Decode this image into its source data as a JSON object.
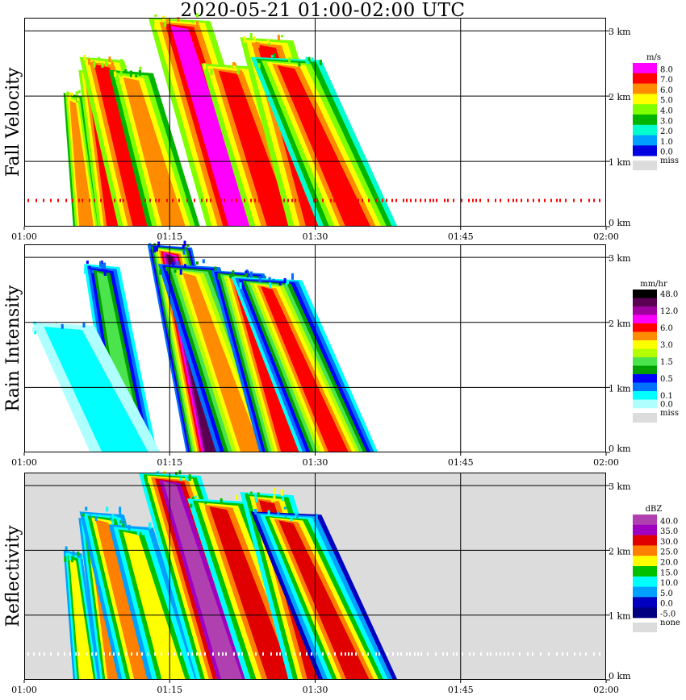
{
  "title": "2020-05-21   01:00-02:00 UTC",
  "x_ticks": [
    "01:00",
    "01:15",
    "01:30",
    "01:45",
    "02:00"
  ],
  "y_ticks": [
    "0 km",
    "1 km",
    "2 km",
    "3 km"
  ],
  "panels": [
    {
      "id": "fall-velocity",
      "ylabel": "Fall Velocity",
      "unit": "m/s",
      "legend": [
        {
          "label": "8.0",
          "color": "#ff00ff"
        },
        {
          "label": "7.0",
          "color": "#ff0000"
        },
        {
          "label": "6.0",
          "color": "#ff8c00"
        },
        {
          "label": "5.0",
          "color": "#ffff00"
        },
        {
          "label": "4.0",
          "color": "#7fff00"
        },
        {
          "label": "3.0",
          "color": "#00b400"
        },
        {
          "label": "2.0",
          "color": "#00ffcc"
        },
        {
          "label": "1.0",
          "color": "#00a0ff"
        },
        {
          "label": "0.0",
          "color": "#0000e0"
        }
      ],
      "missing_label": "miss"
    },
    {
      "id": "rain-intensity",
      "ylabel": "Rain Intensity",
      "unit": "mm/hr",
      "legend": [
        {
          "label": "48.0",
          "color": "#000000"
        },
        {
          "label": "",
          "color": "#5a0050"
        },
        {
          "label": "12.0",
          "color": "#a000a0"
        },
        {
          "label": "",
          "color": "#ff00ff"
        },
        {
          "label": "6.0",
          "color": "#ff0000"
        },
        {
          "label": "",
          "color": "#ff8c00"
        },
        {
          "label": "3.0",
          "color": "#ffff00"
        },
        {
          "label": "",
          "color": "#b4ff00"
        },
        {
          "label": "1.5",
          "color": "#4ce44c"
        },
        {
          "label": "",
          "color": "#00a000"
        },
        {
          "label": "0.5",
          "color": "#0000ff"
        },
        {
          "label": "",
          "color": "#0070ff"
        },
        {
          "label": "0.1",
          "color": "#00ffff"
        },
        {
          "label": "0.0",
          "color": "#b0ffff"
        }
      ],
      "missing_label": "miss"
    },
    {
      "id": "reflectivity",
      "ylabel": "Reflectivity",
      "unit": "dBZ",
      "legend": [
        {
          "label": "40.0",
          "color": "#b040b0"
        },
        {
          "label": "35.0",
          "color": "#a000c0"
        },
        {
          "label": "30.0",
          "color": "#e00000"
        },
        {
          "label": "25.0",
          "color": "#ff8000"
        },
        {
          "label": "20.0",
          "color": "#ffff00"
        },
        {
          "label": "15.0",
          "color": "#00c000"
        },
        {
          "label": "10.0",
          "color": "#00ffff"
        },
        {
          "label": "5.0",
          "color": "#00a0ff"
        },
        {
          "label": "0.0",
          "color": "#0000c0"
        },
        {
          "label": "-5.0",
          "color": "#000080"
        }
      ],
      "missing_label": "none"
    }
  ],
  "chart_data": {
    "type": "heatmap",
    "title": "2020-05-21   01:00-02:00 UTC",
    "x_range": [
      "01:00",
      "02:00"
    ],
    "y_range_km": [
      0,
      3.2
    ],
    "y_tick_values_km": [
      0,
      1,
      2,
      3
    ],
    "grid": true,
    "legend_placement": "right",
    "panels": [
      {
        "name": "Fall Velocity",
        "unit": "m/s",
        "missing_label": "miss",
        "scale": [
          "0.0",
          "1.0",
          "2.0",
          "3.0",
          "4.0",
          "5.0",
          "6.0",
          "7.0",
          "8.0"
        ],
        "background": "#ffffff",
        "palette": [
          "#0000e0",
          "#00a0ff",
          "#00ffcc",
          "#00b400",
          "#7fff00",
          "#ffff00",
          "#ff8c00",
          "#ff0000",
          "#ff00ff"
        ],
        "rain_bands": [
          {
            "t_top": "01:05",
            "t_bottom": "01:06",
            "top_km": 2.05,
            "peak": 6,
            "edge": 3
          },
          {
            "t_top": "01:07",
            "t_bottom": "01:09",
            "top_km": 2.4,
            "peak": 7,
            "edge": 4
          },
          {
            "t_top": "01:08",
            "t_bottom": "01:12",
            "top_km": 2.6,
            "peak": 7,
            "edge": 4
          },
          {
            "t_top": "01:11",
            "t_bottom": "01:15",
            "top_km": 2.4,
            "peak": 6,
            "edge": 3
          },
          {
            "t_top": "01:16",
            "t_bottom": "01:22",
            "top_km": 3.2,
            "peak": 8,
            "edge": 4
          },
          {
            "t_top": "01:21",
            "t_bottom": "01:26",
            "top_km": 2.5,
            "peak": 7,
            "edge": 4
          },
          {
            "t_top": "01:25",
            "t_bottom": "01:30",
            "top_km": 2.9,
            "peak": 7,
            "edge": 4
          },
          {
            "t_top": "01:27",
            "t_bottom": "01:34",
            "top_km": 2.6,
            "peak": 7,
            "edge": 2
          }
        ],
        "speckle_line_km": 0.4
      },
      {
        "name": "Rain Intensity",
        "unit": "mm/hr",
        "missing_label": "miss",
        "scale": [
          "0.0",
          "0.1",
          "0.5",
          "1.5",
          "3.0",
          "6.0",
          "12.0",
          "48.0"
        ],
        "background": "#ffffff",
        "palette": [
          "#b0ffff",
          "#00ffff",
          "#0070ff",
          "#0000ff",
          "#00a000",
          "#4ce44c",
          "#b4ff00",
          "#ffff00",
          "#ff8c00",
          "#ff0000",
          "#ff00ff",
          "#a000a0",
          "#5a0050",
          "#000000"
        ],
        "rain_bands": [
          {
            "t_top": "01:08",
            "t_bottom": "01:11",
            "top_km": 2.9,
            "peak": 5,
            "edge": 1
          },
          {
            "t_top": "01:04",
            "t_bottom": "01:10",
            "top_km": 2.0,
            "peak": 1,
            "edge": 0
          },
          {
            "t_top": "01:15",
            "t_bottom": "01:19",
            "top_km": 3.2,
            "peak": 12,
            "edge": 2
          },
          {
            "t_top": "01:17",
            "t_bottom": "01:23",
            "top_km": 2.9,
            "peak": 8,
            "edge": 2
          },
          {
            "t_top": "01:22",
            "t_bottom": "01:27",
            "top_km": 2.8,
            "peak": 9,
            "edge": 2
          },
          {
            "t_top": "01:25",
            "t_bottom": "01:32",
            "top_km": 2.7,
            "peak": 9,
            "edge": 1
          }
        ]
      },
      {
        "name": "Reflectivity",
        "unit": "dBZ",
        "missing_label": "none",
        "scale": [
          "-5.0",
          "0.0",
          "5.0",
          "10.0",
          "15.0",
          "20.0",
          "25.0",
          "30.0",
          "35.0",
          "40.0"
        ],
        "background": "#dcdcdc",
        "palette": [
          "#000080",
          "#0000c0",
          "#00a0ff",
          "#00ffff",
          "#00c000",
          "#ffff00",
          "#ff8000",
          "#e00000",
          "#a000c0",
          "#b040b0"
        ],
        "rain_bands": [
          {
            "t_top": "01:05",
            "t_bottom": "01:06",
            "top_km": 2.0,
            "peak": 5,
            "edge": 2
          },
          {
            "t_top": "01:07",
            "t_bottom": "01:09",
            "top_km": 2.5,
            "peak": 6,
            "edge": 2
          },
          {
            "t_top": "01:08",
            "t_bottom": "01:12",
            "top_km": 2.6,
            "peak": 6,
            "edge": 2
          },
          {
            "t_top": "01:11",
            "t_bottom": "01:15",
            "top_km": 2.4,
            "peak": 5,
            "edge": 2
          },
          {
            "t_top": "01:15",
            "t_bottom": "01:21",
            "top_km": 3.2,
            "peak": 9,
            "edge": 3
          },
          {
            "t_top": "01:20",
            "t_bottom": "01:26",
            "top_km": 2.8,
            "peak": 7,
            "edge": 3
          },
          {
            "t_top": "01:25",
            "t_bottom": "01:30",
            "top_km": 2.9,
            "peak": 7,
            "edge": 3
          },
          {
            "t_top": "01:27",
            "t_bottom": "01:34",
            "top_km": 2.6,
            "peak": 7,
            "edge": 1
          }
        ],
        "speckle_line_km": 0.4
      }
    ]
  }
}
